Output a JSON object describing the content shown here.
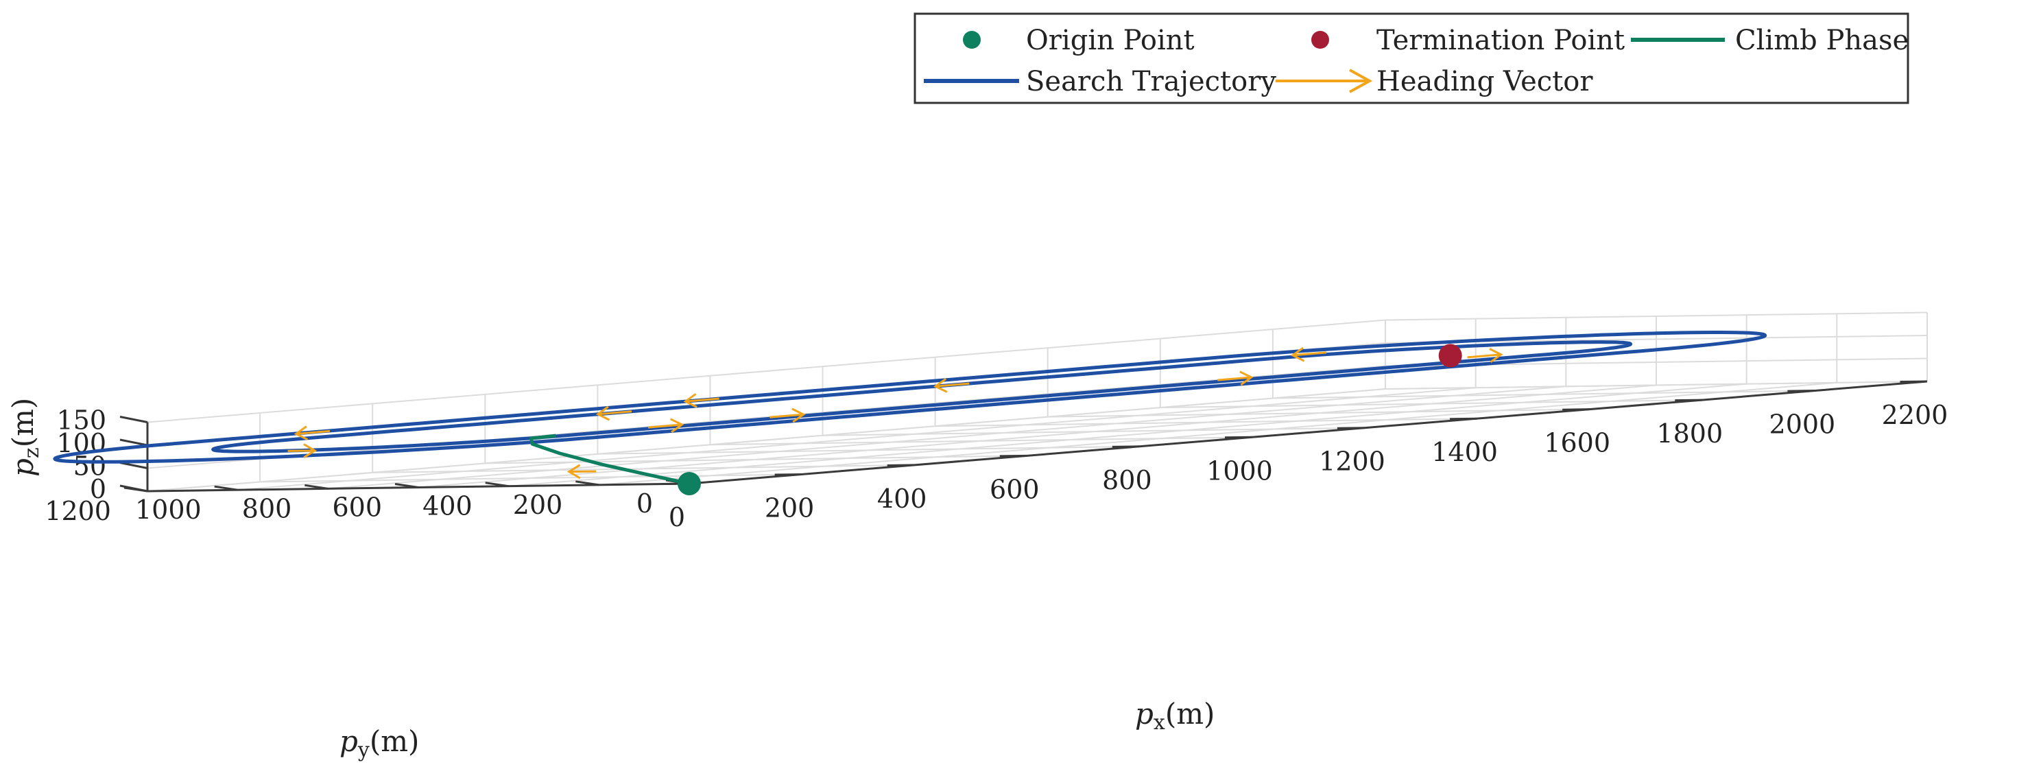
{
  "chart_data": {
    "type": "line3d",
    "title": "",
    "xlabel": {
      "main": "p",
      "sub": "x",
      "unit": "(m)"
    },
    "ylabel": {
      "main": "p",
      "sub": "y",
      "unit": "(m)"
    },
    "zlabel": {
      "main": "p",
      "sub": "z",
      "unit": "(m)"
    },
    "xlim": [
      0,
      2200
    ],
    "ylim": [
      0,
      1200
    ],
    "zlim": [
      0,
      150
    ],
    "xticks": [
      0,
      200,
      400,
      600,
      800,
      1000,
      1200,
      1400,
      1600,
      1800,
      2000,
      2200
    ],
    "yticks": [
      0,
      200,
      400,
      600,
      800,
      1000,
      1200
    ],
    "zticks": [
      0,
      50,
      100,
      150
    ],
    "xtick_labels": [
      "0",
      "200",
      "400",
      "600",
      "800",
      "1000",
      "1200",
      "1400",
      "1600",
      "1800",
      "2000",
      "2200"
    ],
    "ytick_labels": [
      "0",
      "200",
      "400",
      "600",
      "800",
      "1000",
      "1200"
    ],
    "ztick_labels": [
      "0",
      "50",
      "100",
      "150"
    ],
    "grid": true,
    "legend_position": "top-right",
    "legend": [
      {
        "label": "Origin Point",
        "kind": "marker",
        "color": "#0e7f5f"
      },
      {
        "label": "Termination Point",
        "kind": "marker",
        "color": "#a51c35"
      },
      {
        "label": "Climb Phase",
        "kind": "line",
        "color": "#0e7f5f"
      },
      {
        "label": "Search Trajectory",
        "kind": "line",
        "color": "#1f4fa3"
      },
      {
        "label": "Heading Vector",
        "kind": "arrow",
        "color": "#f2a51a"
      }
    ],
    "colors": {
      "climb": "#0e7f5f",
      "search": "#1f4fa3",
      "heading": "#f2a51a",
      "origin": "#0e7f5f",
      "termination": "#a51c35"
    },
    "origin_point": [
      0,
      0,
      0
    ],
    "termination_point": [
      1850,
      620,
      100
    ],
    "climb_phase": [
      [
        0,
        0,
        0
      ],
      [
        -5,
        80,
        20
      ],
      [
        -10,
        180,
        45
      ],
      [
        -5,
        280,
        70
      ],
      [
        10,
        360,
        90
      ],
      [
        40,
        400,
        100
      ],
      [
        100,
        420,
        100
      ]
    ],
    "search_trajectory": {
      "altitude": 100,
      "inner_loop": {
        "x_range": [
          100,
          1850
        ],
        "y_center": 700,
        "radius": 300
      },
      "outer_loop": {
        "x_range": [
          40,
          1900
        ],
        "y_center": 720,
        "radius": 460
      }
    },
    "heading_vectors": [
      {
        "at": [
          280,
          440,
          100
        ],
        "dir": [
          1,
          0,
          0
        ]
      },
      {
        "at": [
          500,
          445,
          100
        ],
        "dir": [
          1,
          0,
          0
        ]
      },
      {
        "at": [
          1300,
          450,
          100
        ],
        "dir": [
          1,
          0,
          0
        ]
      },
      {
        "at": [
          1800,
          520,
          100
        ],
        "dir": [
          1,
          0,
          0
        ]
      },
      {
        "at": [
          1975,
          1050,
          100
        ],
        "dir": [
          -1,
          0,
          0
        ]
      },
      {
        "at": [
          1300,
          1000,
          100
        ],
        "dir": [
          -1,
          0,
          0
        ]
      },
      {
        "at": [
          700,
          1000,
          100
        ],
        "dir": [
          -1,
          0,
          0
        ]
      },
      {
        "at": [
          300,
          1170,
          100
        ],
        "dir": [
          -1,
          0,
          0
        ]
      },
      {
        "at": [
          -200,
          640,
          100
        ],
        "dir": [
          0,
          -1,
          0
        ]
      },
      {
        "at": [
          -5,
          200,
          30
        ],
        "dir": [
          0,
          1,
          0
        ]
      },
      {
        "at": [
          1000,
          1180,
          100
        ],
        "dir": [
          -1,
          0,
          0
        ]
      }
    ]
  }
}
